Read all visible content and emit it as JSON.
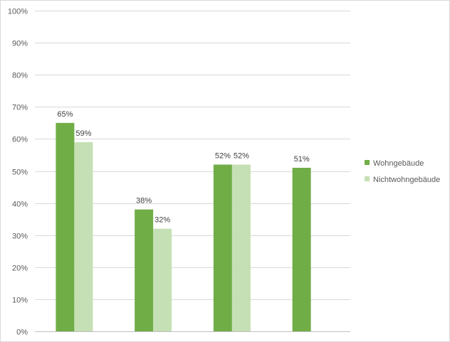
{
  "chart_data": {
    "type": "bar",
    "categories": [
      "",
      "",
      "",
      ""
    ],
    "y_tick_labels": [
      "0%",
      "10%",
      "20%",
      "30%",
      "40%",
      "50%",
      "60%",
      "70%",
      "80%",
      "90%",
      "100%"
    ],
    "ylim": [
      0,
      100
    ],
    "grid": true,
    "legend_position": "right",
    "series": [
      {
        "name": "Wohngebäude",
        "color": "#70ad47",
        "values": [
          65,
          38,
          52,
          51
        ],
        "labels": [
          "65%",
          "38%",
          "52%",
          "51%"
        ]
      },
      {
        "name": "Nichtwohngebäude",
        "color": "#c5e0b4",
        "values": [
          59,
          32,
          52,
          null
        ],
        "labels": [
          "59%",
          "32%",
          "52%",
          ""
        ]
      }
    ]
  }
}
